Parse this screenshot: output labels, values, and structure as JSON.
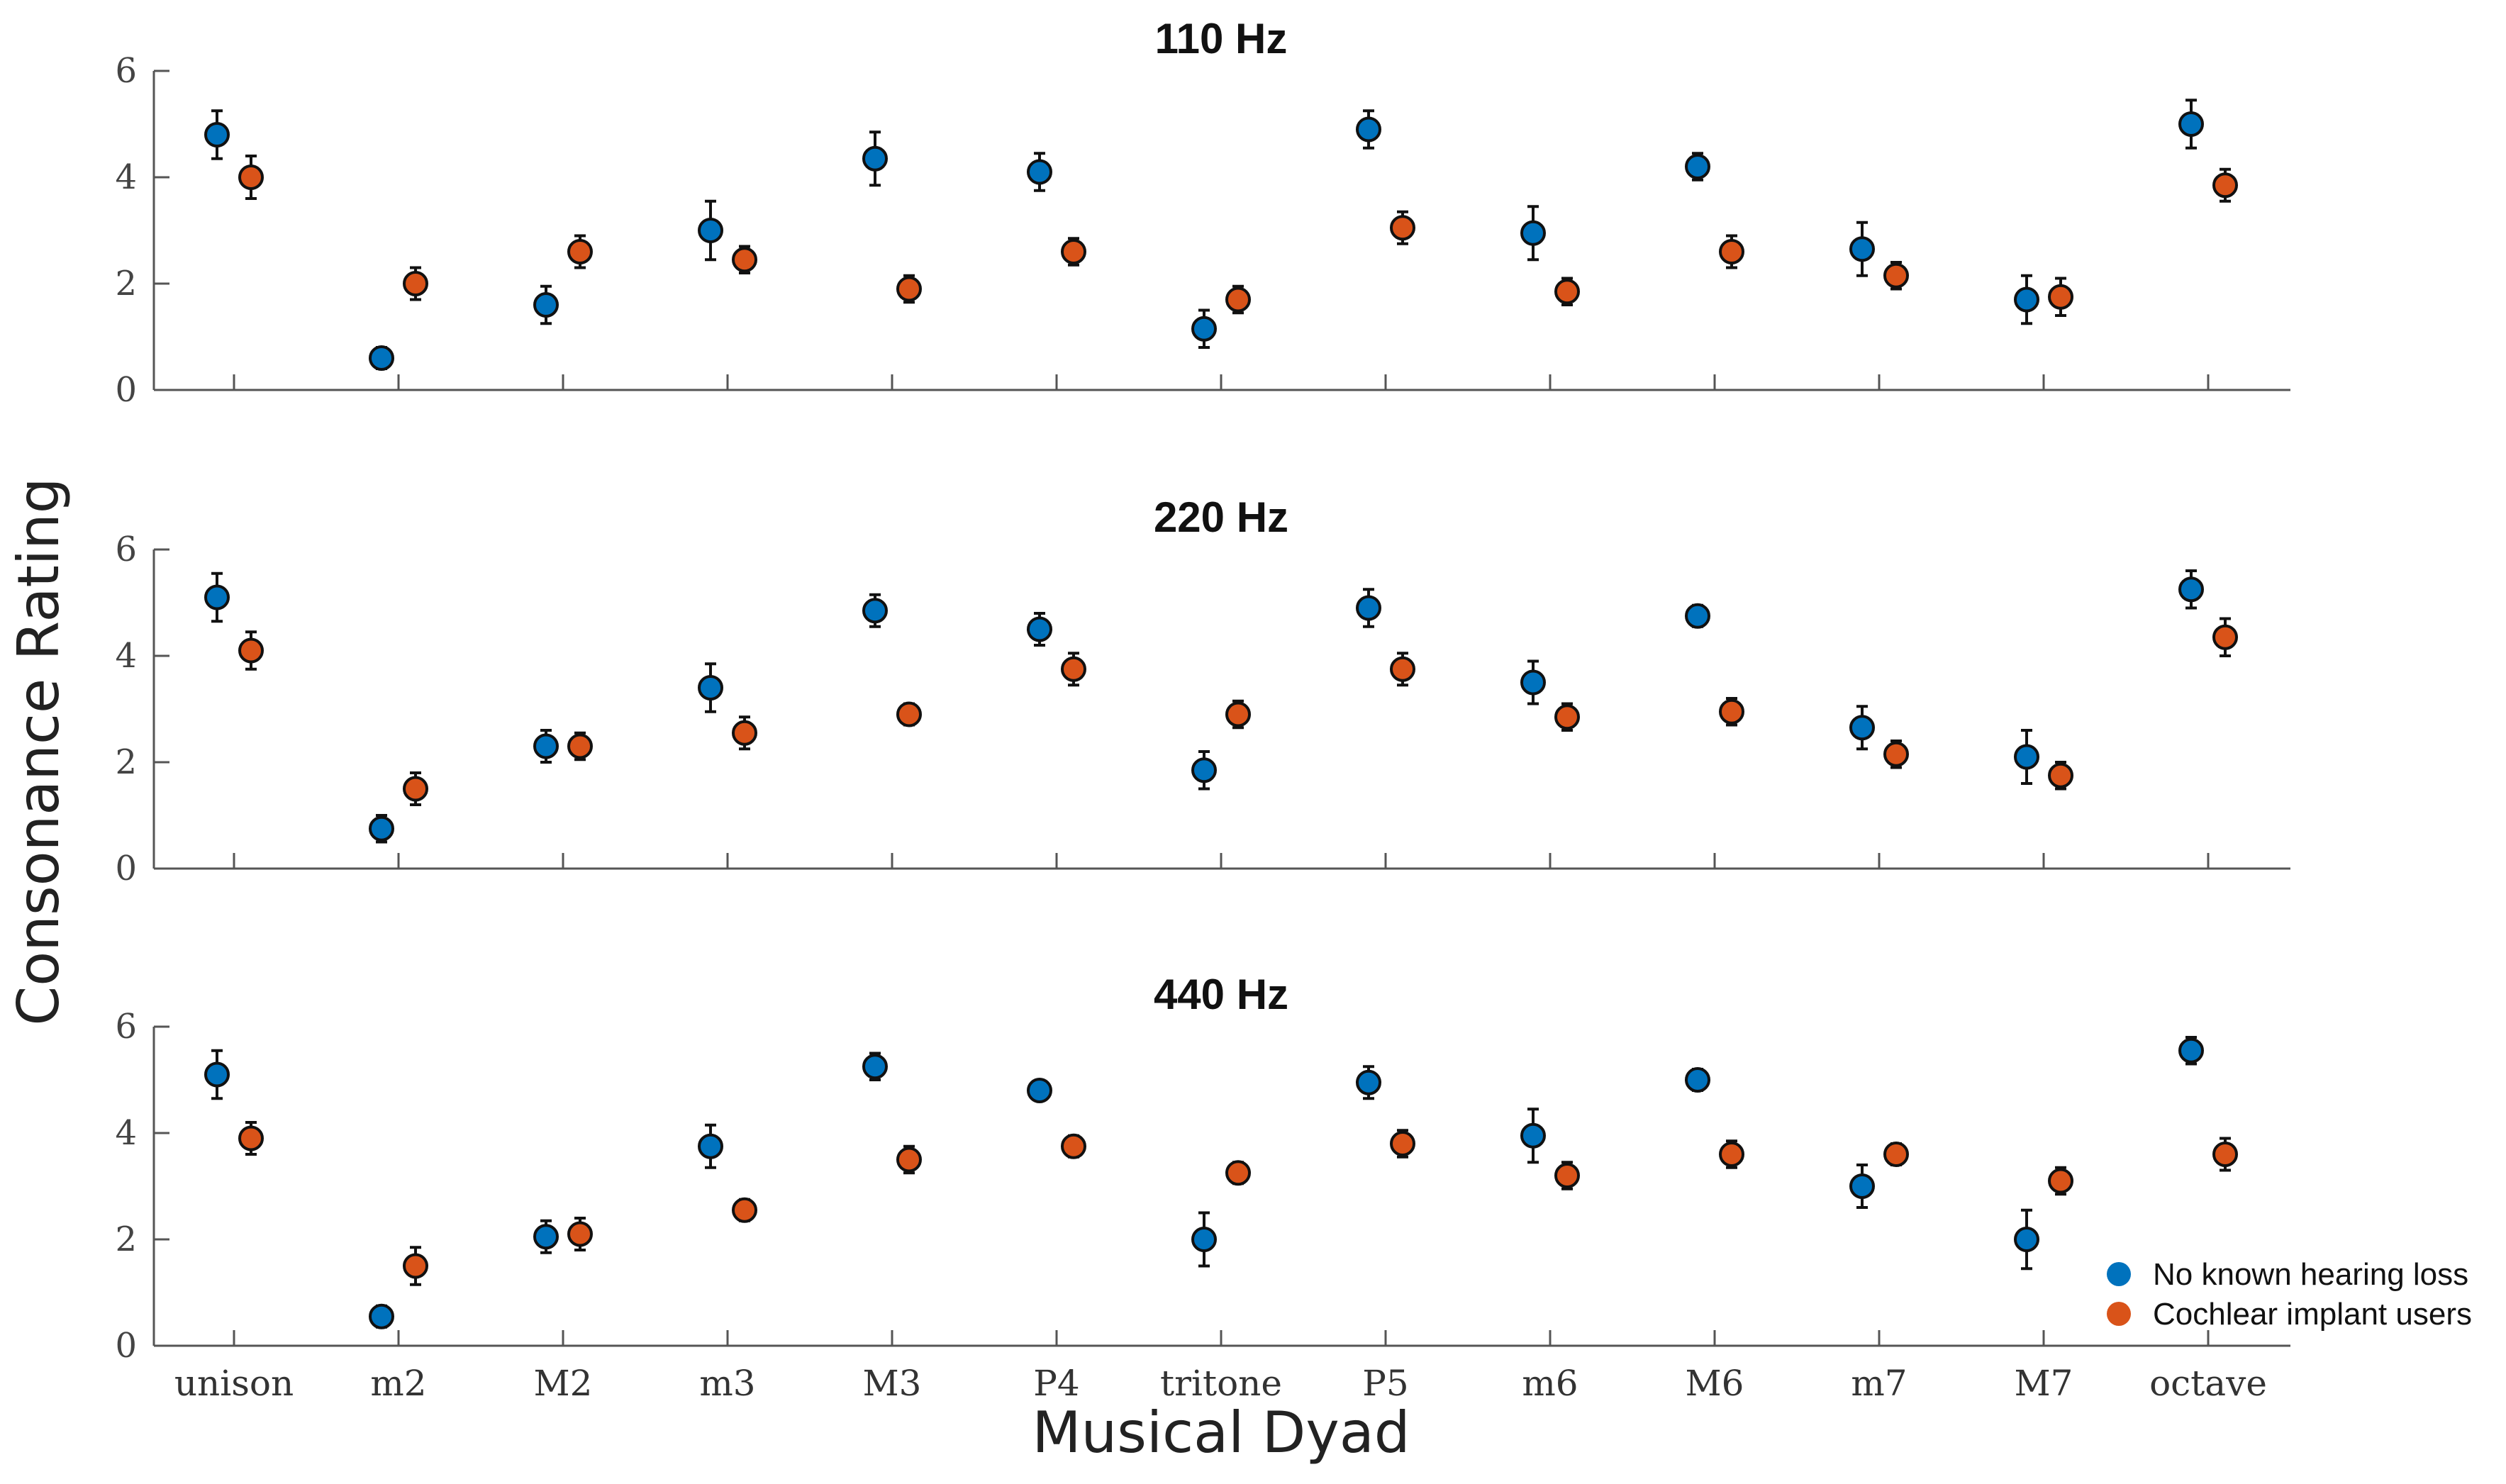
{
  "chart_data": {
    "type": "scatter",
    "xlabel": "Musical Dyad",
    "ylabel": "Consonance Rating",
    "categories": [
      "unison",
      "m2",
      "M2",
      "m3",
      "M3",
      "P4",
      "tritone",
      "P5",
      "m6",
      "M6",
      "m7",
      "M7",
      "octave"
    ],
    "ylim": [
      0,
      6
    ],
    "yticks": [
      0,
      2,
      4,
      6
    ],
    "legend_position": "bottom-right",
    "legend": [
      {
        "name": "No known hearing loss",
        "color": "#0072BD"
      },
      {
        "name": "Cochlear implant users",
        "color": "#D95319"
      }
    ],
    "panels": [
      {
        "title": "110 Hz",
        "series": [
          {
            "name": "No known hearing loss",
            "color": "#0072BD",
            "values": [
              4.8,
              0.6,
              1.6,
              3.0,
              4.35,
              4.1,
              1.15,
              4.9,
              2.95,
              4.2,
              2.65,
              1.7,
              5.0
            ],
            "errors": [
              0.45,
              0.2,
              0.35,
              0.55,
              0.5,
              0.35,
              0.35,
              0.35,
              0.5,
              0.25,
              0.5,
              0.45,
              0.45
            ]
          },
          {
            "name": "Cochlear implant users",
            "color": "#D95319",
            "values": [
              4.0,
              2.0,
              2.6,
              2.45,
              1.9,
              2.6,
              1.7,
              3.05,
              1.85,
              2.6,
              2.15,
              1.75,
              3.85
            ],
            "errors": [
              0.4,
              0.3,
              0.3,
              0.25,
              0.25,
              0.25,
              0.25,
              0.3,
              0.25,
              0.3,
              0.25,
              0.35,
              0.3
            ]
          }
        ]
      },
      {
        "title": "220 Hz",
        "series": [
          {
            "name": "No known hearing loss",
            "color": "#0072BD",
            "values": [
              5.1,
              0.75,
              2.3,
              3.4,
              4.85,
              4.5,
              1.85,
              4.9,
              3.5,
              4.75,
              2.65,
              2.1,
              5.25
            ],
            "errors": [
              0.45,
              0.25,
              0.3,
              0.45,
              0.3,
              0.3,
              0.35,
              0.35,
              0.4,
              0.2,
              0.4,
              0.5,
              0.35
            ]
          },
          {
            "name": "Cochlear implant users",
            "color": "#D95319",
            "values": [
              4.1,
              1.5,
              2.3,
              2.55,
              2.9,
              3.75,
              2.9,
              3.75,
              2.85,
              2.95,
              2.15,
              1.75,
              4.35
            ],
            "errors": [
              0.35,
              0.3,
              0.25,
              0.3,
              0.2,
              0.3,
              0.25,
              0.3,
              0.25,
              0.25,
              0.25,
              0.25,
              0.35
            ]
          }
        ]
      },
      {
        "title": "440 Hz",
        "series": [
          {
            "name": "No known hearing loss",
            "color": "#0072BD",
            "values": [
              5.1,
              0.55,
              2.05,
              3.75,
              5.25,
              4.8,
              2.0,
              4.95,
              3.95,
              5.0,
              3.0,
              2.0,
              5.55
            ],
            "errors": [
              0.45,
              0.2,
              0.3,
              0.4,
              0.25,
              0.15,
              0.5,
              0.3,
              0.5,
              0.2,
              0.4,
              0.55,
              0.25
            ]
          },
          {
            "name": "Cochlear implant users",
            "color": "#D95319",
            "values": [
              3.9,
              1.5,
              2.1,
              2.55,
              3.5,
              3.75,
              3.25,
              3.8,
              3.2,
              3.6,
              3.6,
              3.1,
              3.6
            ],
            "errors": [
              0.3,
              0.35,
              0.3,
              0.2,
              0.25,
              0.2,
              0.2,
              0.25,
              0.25,
              0.25,
              0.2,
              0.25,
              0.3
            ]
          }
        ]
      }
    ]
  }
}
